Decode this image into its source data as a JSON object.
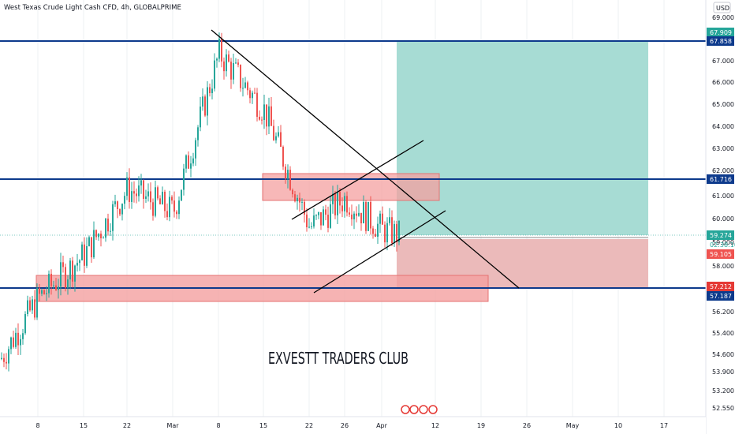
{
  "header": {
    "symbol_title": "West Texas Crude Light Cash CFD, 4h, GLOBALPRIME",
    "currency_button": "USD"
  },
  "watermark": "EXVESTT TRADERS CLUB",
  "countdown": "02:38:10",
  "colors": {
    "up": "#26a69a",
    "down": "#ef5350",
    "level_line": "#0d3a8c",
    "target_zone": "#a7dcd4",
    "stop_zone": "#ebbaba",
    "supply_zone": "#f4a0a0",
    "trendline": "#000000"
  },
  "price_tags": [
    {
      "label": "67.909",
      "value": 67.909,
      "color": "#26a69a"
    },
    {
      "label": "67.858",
      "value": 67.858,
      "color": "#0d3a8c"
    },
    {
      "label": "61.716",
      "value": 61.716,
      "color": "#0d3a8c"
    },
    {
      "label": "59.274",
      "value": 59.274,
      "color": "#26a69a"
    },
    {
      "label": "59.105",
      "value": 59.105,
      "color": "#ef5350"
    },
    {
      "label": "57.212",
      "value": 57.212,
      "color": "#e53935"
    },
    {
      "label": "57.187",
      "value": 57.187,
      "color": "#0d3a8c"
    }
  ],
  "chart_data": {
    "type": "candlestick",
    "title": "West Texas Crude Light Cash CFD, 4h, GLOBALPRIME",
    "y_tick_labels": [
      "69.000",
      "68.000",
      "67.000",
      "66.000",
      "65.000",
      "64.000",
      "63.000",
      "62.000",
      "61.000",
      "60.000",
      "59.000",
      "58.000",
      "57.000",
      "56.200",
      "55.400",
      "54.600",
      "53.900",
      "53.200",
      "52.550"
    ],
    "x_tick_labels": [
      "8",
      "15",
      "22",
      "Mar",
      "8",
      "15",
      "22",
      "26",
      "Apr",
      "12",
      "19",
      "26",
      "May",
      "10",
      "17"
    ],
    "horizontal_levels": [
      67.858,
      61.716,
      57.187
    ],
    "last_price": 59.274,
    "close_trend": [
      [
        "8",
        56.5
      ],
      [
        "15",
        58.4
      ],
      [
        "22",
        61.3
      ],
      [
        "Mar",
        60.3
      ],
      [
        "8",
        67.3
      ],
      [
        "15",
        64.8
      ],
      [
        "22",
        59.6
      ],
      [
        "26",
        60.9
      ],
      [
        "Apr",
        59.27
      ]
    ],
    "annotations": [
      {
        "type": "long-position",
        "entry": 59.105,
        "target": 67.909,
        "stop": 57.212
      },
      {
        "type": "supply-zone",
        "from": 60.8,
        "to": 61.9
      },
      {
        "type": "demand-zone",
        "from": 56.8,
        "to": 57.6
      },
      {
        "type": "descending-trendline"
      },
      {
        "type": "rising-channel"
      }
    ]
  }
}
